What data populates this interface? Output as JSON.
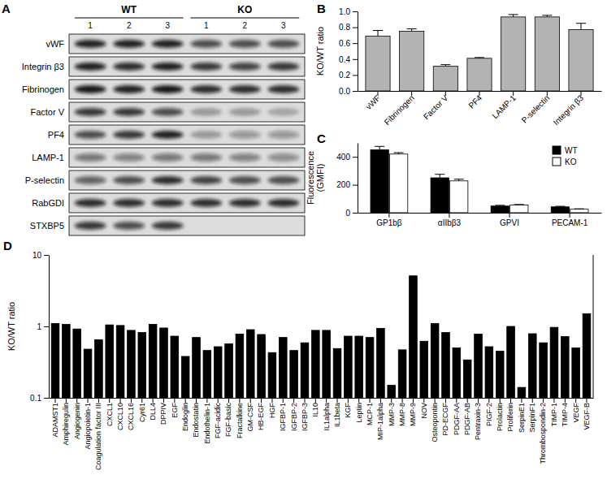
{
  "blot": {
    "panel_label": "A",
    "groups": [
      "WT",
      "KO"
    ],
    "lanes": [
      "1",
      "2",
      "3",
      "1",
      "2",
      "3"
    ],
    "rows": [
      {
        "label": "vWF",
        "intensity": [
          0.9,
          0.9,
          0.9,
          0.7,
          0.7,
          0.7
        ]
      },
      {
        "label": "Integrin β3",
        "intensity": [
          0.9,
          0.85,
          0.9,
          0.8,
          0.75,
          0.8
        ]
      },
      {
        "label": "Fibrinogen",
        "intensity": [
          0.95,
          0.9,
          0.95,
          0.85,
          0.85,
          0.85
        ]
      },
      {
        "label": "Factor V",
        "intensity": [
          0.8,
          0.8,
          0.7,
          0.3,
          0.3,
          0.25
        ]
      },
      {
        "label": "PF4",
        "intensity": [
          0.7,
          0.8,
          0.9,
          0.3,
          0.35,
          0.35
        ]
      },
      {
        "label": "LAMP-1",
        "intensity": [
          0.5,
          0.45,
          0.5,
          0.5,
          0.45,
          0.4
        ]
      },
      {
        "label": "P-selectin",
        "intensity": [
          0.6,
          0.7,
          0.85,
          0.75,
          0.7,
          0.7
        ]
      },
      {
        "label": "RabGDI",
        "intensity": [
          0.85,
          0.85,
          0.85,
          0.85,
          0.85,
          0.85
        ]
      },
      {
        "label": "STXBP5",
        "intensity": [
          0.8,
          0.7,
          0.8,
          0,
          0,
          0
        ]
      }
    ]
  },
  "chart_data": [
    {
      "type": "bar",
      "panel_label": "B",
      "ylabel": "KO/WT ratio",
      "categories": [
        "vWF",
        "Fibrinogen",
        "Factor V",
        "PF4",
        "LAMP-1",
        "P-selectin",
        "Integrin β3"
      ],
      "values": [
        0.69,
        0.75,
        0.31,
        0.41,
        0.93,
        0.93,
        0.77
      ],
      "errors": [
        0.07,
        0.03,
        0.02,
        0.01,
        0.03,
        0.02,
        0.08
      ],
      "color": "#b3b3b3",
      "ylim": [
        0,
        1.0
      ],
      "yticks": [
        {
          "value": 0,
          "label": "0.0"
        },
        {
          "value": 0.2,
          "label": "0.2"
        },
        {
          "value": 0.4,
          "label": "0.4"
        },
        {
          "value": 0.6,
          "label": "0.6"
        },
        {
          "value": 0.8,
          "label": "0.8"
        },
        {
          "value": 1.0,
          "label": "1.0"
        }
      ],
      "grid": false
    },
    {
      "type": "bar",
      "panel_label": "C",
      "ylabel": [
        "Fluorescence",
        "(GMFI)"
      ],
      "categories": [
        "GP1bβ",
        "αIIbβ3",
        "GPVI",
        "PECAM-1"
      ],
      "series": [
        {
          "name": "WT",
          "color": "#000000",
          "values": [
            450,
            250,
            48,
            42
          ],
          "errors": [
            25,
            25,
            5,
            4
          ]
        },
        {
          "name": "KO",
          "color": "#ffffff",
          "values": [
            420,
            228,
            55,
            25
          ],
          "errors": [
            10,
            12,
            4,
            3
          ]
        }
      ],
      "ylim": [
        0,
        500
      ],
      "yticks": [
        0,
        200,
        400
      ],
      "legend": "top-right",
      "grid": false
    },
    {
      "type": "bar",
      "panel_label": "D",
      "ylabel": "KO/WT ratio",
      "log": "y",
      "categories": [
        "ADAMST1",
        "Amphiregulin",
        "Angiogenin",
        "Angiopoietin-1",
        "Coagulation factor III",
        "CXCL1",
        "CXCL10",
        "CXCL16",
        "Cyr61",
        "DLL4",
        "DPPIV",
        "EGF",
        "Endoglin",
        "Endostatin",
        "Endothelin-1",
        "FGF-acidic",
        "FGF-basic",
        "Fractalkine",
        "GM-CSF",
        "HB-EGF",
        "HGF",
        "IGFBP-1",
        "IGFBP-2",
        "IGFBP-3",
        "IL10",
        "IL1alpha",
        "IL1beta",
        "KGF",
        "Leptin",
        "MCP-1",
        "MIP-1alpha",
        "MMP-3",
        "MMP-8",
        "MMP-9",
        "NOV",
        "Osteopontin",
        "PD-ECGF",
        "PDGF-AA",
        "PDGF-AB",
        "Pentraxin-3",
        "PIGF-2",
        "Prolactin",
        "Proliferin",
        "SerpinE1",
        "SerpinF1",
        "Thrombospondin-2",
        "TIMP-1",
        "TIMP-4",
        "VEGF",
        "VEGF-B"
      ],
      "values": [
        1.1,
        1.07,
        0.92,
        0.48,
        0.65,
        1.05,
        1.03,
        0.88,
        0.82,
        1.07,
        0.95,
        0.73,
        0.38,
        0.7,
        0.46,
        0.52,
        0.57,
        0.78,
        0.9,
        0.77,
        0.43,
        0.7,
        0.46,
        0.59,
        0.88,
        0.88,
        0.49,
        0.73,
        0.73,
        0.7,
        0.94,
        0.15,
        0.47,
        5.1,
        0.62,
        1.1,
        0.82,
        0.5,
        0.34,
        0.78,
        0.52,
        0.45,
        1.0,
        0.14,
        0.79,
        0.59,
        0.97,
        0.72,
        0.5,
        1.5
      ],
      "color": "#000000",
      "ylim": [
        0.1,
        10
      ],
      "yticks": [
        0.1,
        1,
        10
      ],
      "grid": false
    }
  ]
}
